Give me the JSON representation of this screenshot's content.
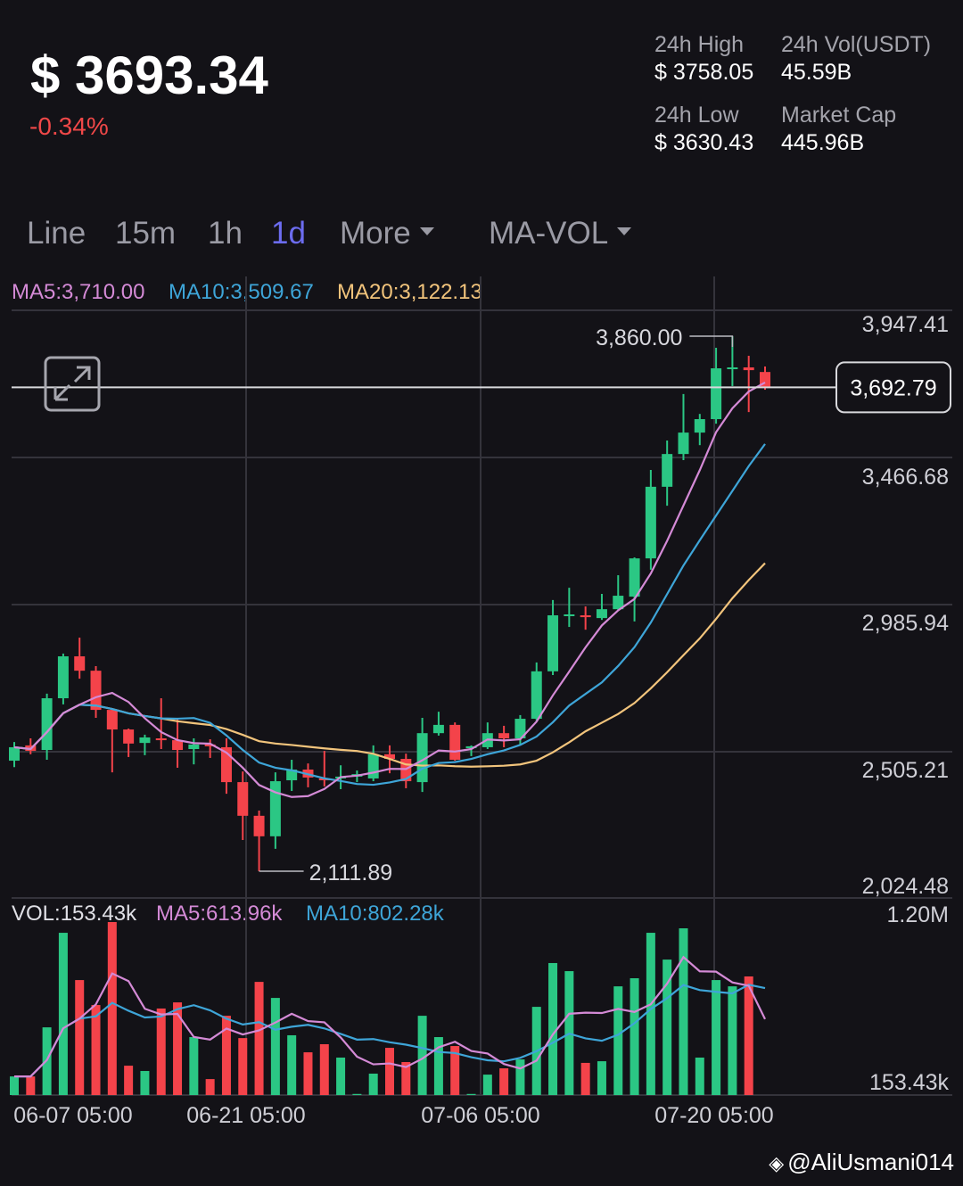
{
  "header": {
    "price": "$ 3693.34",
    "change": "-0.34%",
    "stats": [
      {
        "label": "24h High",
        "value": "$ 3758.05"
      },
      {
        "label": "24h Vol(USDT)",
        "value": "45.59B"
      },
      {
        "label": "24h Low",
        "value": "$ 3630.43"
      },
      {
        "label": "Market Cap",
        "value": "445.96B"
      }
    ]
  },
  "tabs": {
    "items": [
      "Line",
      "15m",
      "1h",
      "1d",
      "More"
    ],
    "active": "1d",
    "indicator": "MA-VOL"
  },
  "legend": {
    "ma5": "MA5:3,710.00",
    "ma10": "MA10:3,509.67",
    "ma20": "MA20:3,122.13",
    "vol": "VOL:153.43k",
    "vol_ma5": "MA5:613.96k",
    "vol_ma10": "MA10:802.28k"
  },
  "colors": {
    "up": "#2bc784",
    "down": "#f4434a",
    "ma5": "#d48ad6",
    "ma10": "#3ea5d8",
    "ma20": "#f2c47c",
    "active_tab": "#6c6cf0",
    "background": "#131217"
  },
  "watermark": "@AliUsmani014",
  "chart_data": {
    "type": "candlestick",
    "price_axis": {
      "ticks": [
        "3,947.41",
        "3,466.68",
        "2,985.94",
        "2,505.21",
        "2,024.48"
      ],
      "ylim": [
        2024.48,
        3947.41
      ]
    },
    "volume_axis": {
      "ticks": [
        "1.20M",
        "153.43k"
      ],
      "ylim": [
        153.43,
        1200
      ]
    },
    "x_tick_labels": [
      "06-07 05:00",
      "06-21 05:00",
      "07-06 05:00",
      "07-20 05:00"
    ],
    "current_price_label": "3,692.79",
    "current_price": 3692.79,
    "high_annotation": {
      "label": "3,860.00",
      "value": 3860.0,
      "index": 44
    },
    "low_annotation": {
      "label": "2,111.89",
      "value": 2111.89,
      "index": 15
    },
    "grid": true,
    "candles": [
      {
        "o": 2473,
        "h": 2534,
        "l": 2452,
        "c": 2517,
        "v": 266
      },
      {
        "o": 2523,
        "h": 2546,
        "l": 2494,
        "c": 2505,
        "v": 266
      },
      {
        "o": 2508,
        "h": 2692,
        "l": 2476,
        "c": 2677,
        "v": 563
      },
      {
        "o": 2677,
        "h": 2823,
        "l": 2657,
        "c": 2814,
        "v": 1135
      },
      {
        "o": 2814,
        "h": 2875,
        "l": 2741,
        "c": 2767,
        "v": 849
      },
      {
        "o": 2767,
        "h": 2782,
        "l": 2613,
        "c": 2639,
        "v": 698
      },
      {
        "o": 2639,
        "h": 2642,
        "l": 2435,
        "c": 2575,
        "v": 1200
      },
      {
        "o": 2575,
        "h": 2578,
        "l": 2485,
        "c": 2529,
        "v": 331
      },
      {
        "o": 2531,
        "h": 2558,
        "l": 2491,
        "c": 2549,
        "v": 299
      },
      {
        "o": 2546,
        "h": 2677,
        "l": 2511,
        "c": 2540,
        "v": 677
      },
      {
        "o": 2540,
        "h": 2610,
        "l": 2450,
        "c": 2508,
        "v": 714
      },
      {
        "o": 2511,
        "h": 2546,
        "l": 2461,
        "c": 2526,
        "v": 504
      },
      {
        "o": 2526,
        "h": 2543,
        "l": 2482,
        "c": 2520,
        "v": 250
      },
      {
        "o": 2517,
        "h": 2546,
        "l": 2365,
        "c": 2403,
        "v": 633
      },
      {
        "o": 2403,
        "h": 2438,
        "l": 2214,
        "c": 2293,
        "v": 498
      },
      {
        "o": 2293,
        "h": 2310,
        "l": 2111.89,
        "c": 2226,
        "v": 838
      },
      {
        "o": 2226,
        "h": 2435,
        "l": 2185,
        "c": 2406,
        "v": 741
      },
      {
        "o": 2409,
        "h": 2476,
        "l": 2374,
        "c": 2444,
        "v": 515
      },
      {
        "o": 2444,
        "h": 2464,
        "l": 2386,
        "c": 2418,
        "v": 412
      },
      {
        "o": 2415,
        "h": 2505,
        "l": 2389,
        "c": 2409,
        "v": 461
      },
      {
        "o": 2415,
        "h": 2458,
        "l": 2380,
        "c": 2421,
        "v": 380
      },
      {
        "o": 2421,
        "h": 2441,
        "l": 2403,
        "c": 2429,
        "v": 160
      },
      {
        "o": 2415,
        "h": 2523,
        "l": 2406,
        "c": 2494,
        "v": 283
      },
      {
        "o": 2494,
        "h": 2523,
        "l": 2432,
        "c": 2479,
        "v": 439
      },
      {
        "o": 2479,
        "h": 2496,
        "l": 2383,
        "c": 2406,
        "v": 353
      },
      {
        "o": 2403,
        "h": 2613,
        "l": 2371,
        "c": 2563,
        "v": 633
      },
      {
        "o": 2563,
        "h": 2633,
        "l": 2555,
        "c": 2590,
        "v": 504
      },
      {
        "o": 2590,
        "h": 2598,
        "l": 2473,
        "c": 2476,
        "v": 450
      },
      {
        "o": 2514,
        "h": 2523,
        "l": 2488,
        "c": 2520,
        "v": 160
      },
      {
        "o": 2517,
        "h": 2598,
        "l": 2511,
        "c": 2563,
        "v": 277
      },
      {
        "o": 2563,
        "h": 2587,
        "l": 2517,
        "c": 2546,
        "v": 315
      },
      {
        "o": 2546,
        "h": 2622,
        "l": 2526,
        "c": 2610,
        "v": 369
      },
      {
        "o": 2610,
        "h": 2794,
        "l": 2603,
        "c": 2765,
        "v": 687
      },
      {
        "o": 2765,
        "h": 2998,
        "l": 2753,
        "c": 2948,
        "v": 952
      },
      {
        "o": 2948,
        "h": 3038,
        "l": 2910,
        "c": 2951,
        "v": 903
      },
      {
        "o": 2948,
        "h": 2977,
        "l": 2901,
        "c": 2942,
        "v": 348
      },
      {
        "o": 2939,
        "h": 3018,
        "l": 2933,
        "c": 2968,
        "v": 358
      },
      {
        "o": 2968,
        "h": 3079,
        "l": 2965,
        "c": 3012,
        "v": 811
      },
      {
        "o": 3009,
        "h": 3137,
        "l": 2928,
        "c": 3134,
        "v": 860
      },
      {
        "o": 3134,
        "h": 3423,
        "l": 3097,
        "c": 3368,
        "v": 1135
      },
      {
        "o": 3368,
        "h": 3519,
        "l": 3306,
        "c": 3475,
        "v": 973
      },
      {
        "o": 3475,
        "h": 3671,
        "l": 3455,
        "c": 3545,
        "v": 1162
      },
      {
        "o": 3545,
        "h": 3606,
        "l": 3504,
        "c": 3589,
        "v": 380
      },
      {
        "o": 3589,
        "h": 3822,
        "l": 3574,
        "c": 3755,
        "v": 849
      },
      {
        "o": 3755,
        "h": 3860,
        "l": 3697,
        "c": 3758,
        "v": 811
      },
      {
        "o": 3758,
        "h": 3796,
        "l": 3612,
        "c": 3749,
        "v": 871
      },
      {
        "o": 3743,
        "h": 3761,
        "l": 3685,
        "c": 3692.79,
        "v": 153.43
      }
    ],
    "volume_unit": "k"
  }
}
